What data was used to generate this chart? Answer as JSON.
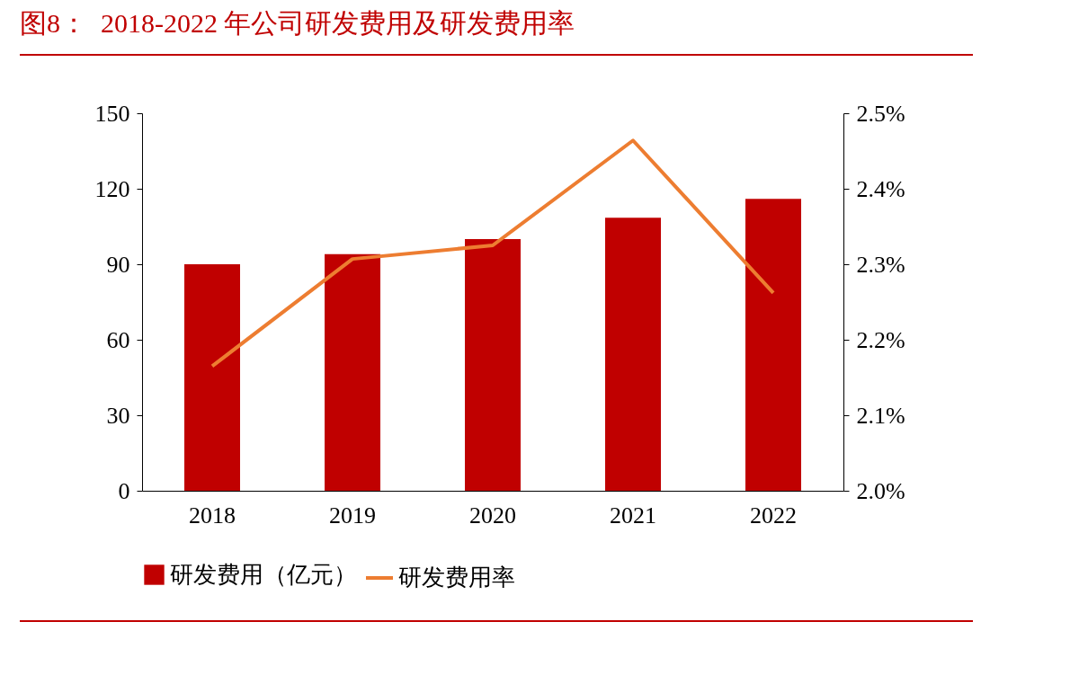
{
  "chart_data": {
    "type": "bar",
    "title": "图8：  2018-2022 年公司研发费用及研发费用率",
    "categories": [
      "2018",
      "2019",
      "2020",
      "2021",
      "2022"
    ],
    "series": [
      {
        "name": "研发费用（亿元）",
        "color": "#c00000",
        "values": [
          90,
          94,
          100,
          108.5,
          116
        ]
      },
      {
        "name": "研发费用率",
        "type": "line",
        "axis": "y2",
        "color": "#ed7d31",
        "values": [
          2.165,
          2.307,
          2.325,
          2.464,
          2.262
        ]
      }
    ],
    "ylim": [
      0,
      150
    ],
    "yticks": [
      0,
      30,
      60,
      90,
      120,
      150
    ],
    "y2lim": [
      2.0,
      2.5
    ],
    "y2ticks": [
      {
        "value": 2.0,
        "label": "2.0%"
      },
      {
        "value": 2.1,
        "label": "2.1%"
      },
      {
        "value": 2.2,
        "label": "2.2%"
      },
      {
        "value": 2.3,
        "label": "2.3%"
      },
      {
        "value": 2.4,
        "label": "2.4%"
      },
      {
        "value": 2.5,
        "label": "2.5%"
      }
    ],
    "grid": false,
    "legend": "bottom",
    "line_style": "solid",
    "marker": "none"
  }
}
